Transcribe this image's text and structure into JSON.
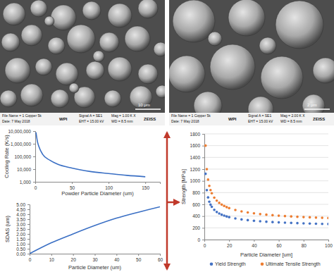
{
  "images": [
    {
      "texts": [
        "File Name = 1 Copper 5k",
        "Date: 7 May 2018",
        "WPI",
        "Signal A = SE1",
        "EHT = 15.00 kV",
        "Mag = 1.00 K X",
        "WD = 8.5 mm",
        "ZEISS",
        "10 μm"
      ]
    },
    {
      "texts": [
        "File Name = 1 Copper 5k",
        "Date: 7 May 2018",
        "WPI",
        "Signal A = SE1",
        "EHT = 15.00 kV",
        "Mag = 2.00 K X",
        "WD = 8.5 mm",
        "ZEISS",
        "2 μm"
      ]
    }
  ],
  "chart_data": [
    {
      "type": "line",
      "x_label": "Powder Particle Diameter (um)",
      "y_label": "Cooling Rate (K/s)",
      "x": [
        1,
        3,
        5,
        10,
        20,
        30,
        50,
        75,
        100,
        125,
        150
      ],
      "values": [
        8000000,
        1500000,
        600000,
        150000,
        50000,
        25000,
        12000,
        6500,
        4500,
        3200,
        2500
      ],
      "color": "#3a6fc4",
      "log": "y",
      "xlim": [
        0,
        170
      ],
      "xticks": [
        0,
        50,
        100,
        150
      ],
      "ylim": [
        1000,
        10000000
      ],
      "yticks": [
        {
          "value": 1000,
          "label": "1,000"
        },
        {
          "value": 10000,
          "label": "10,000"
        },
        {
          "value": 100000,
          "label": "100,000"
        },
        {
          "value": 1000000,
          "label": "1,000,000"
        },
        {
          "value": 10000000,
          "label": "10,000,000"
        }
      ]
    },
    {
      "type": "line",
      "x_label": "Particle Diameter (um)",
      "y_label": "SDAS (um)",
      "x": [
        0,
        10,
        20,
        30,
        40,
        50,
        60
      ],
      "values": [
        0,
        1.1,
        2.0,
        2.85,
        3.6,
        4.2,
        4.75
      ],
      "color": "#3a6fc4",
      "xlim": [
        0,
        60
      ],
      "xticks": [
        0,
        10,
        20,
        30,
        40,
        50,
        60
      ],
      "ylim": [
        0,
        5
      ],
      "yticks": [
        {
          "value": 0,
          "label": "0.00"
        },
        {
          "value": 0.5,
          "label": "0.50"
        },
        {
          "value": 1,
          "label": "1.00"
        },
        {
          "value": 1.5,
          "label": "1.50"
        },
        {
          "value": 2,
          "label": "2.00"
        },
        {
          "value": 2.5,
          "label": "2.50"
        },
        {
          "value": 3,
          "label": "3.00"
        },
        {
          "value": 3.5,
          "label": "3.50"
        },
        {
          "value": 4,
          "label": "4.00"
        },
        {
          "value": 4.5,
          "label": "4.50"
        },
        {
          "value": 5,
          "label": "5.00"
        }
      ]
    },
    {
      "type": "scatter",
      "x_label": "Particle Diameter [um]",
      "y_label": "Strength [MPa]",
      "x": [
        1,
        2,
        3,
        4,
        5,
        6,
        8,
        10,
        12,
        14,
        16,
        18,
        20,
        25,
        30,
        35,
        40,
        45,
        50,
        55,
        60,
        65,
        70,
        75,
        80,
        85,
        90,
        95,
        100
      ],
      "series": [
        {
          "name": "Yield Strength",
          "color": "#4472c4",
          "values": [
            1120,
            842,
            718,
            645,
            595,
            558,
            506,
            470,
            444,
            424,
            408,
            394,
            382,
            360,
            343,
            331,
            320,
            312,
            304,
            298,
            293,
            288,
            284,
            280,
            276,
            273,
            270,
            267,
            265
          ]
        },
        {
          "name": "Ultimate Tensile Strength",
          "color": "#ed7d31",
          "values": [
            1600,
            1199,
            1021,
            915,
            843,
            789,
            714,
            663,
            625,
            596,
            573,
            553,
            536,
            504,
            480,
            462,
            447,
            434,
            424,
            415,
            407,
            400,
            394,
            388,
            383,
            379,
            374,
            371,
            367
          ]
        }
      ],
      "marker": "circle",
      "grid": true,
      "legend": "bottom",
      "xlim": [
        0,
        100
      ],
      "xticks": [
        0,
        20,
        40,
        60,
        80,
        100
      ],
      "ylim": [
        0,
        1800
      ],
      "yticks": [
        0,
        200,
        400,
        600,
        800,
        1000,
        1200,
        1400,
        1600,
        1800
      ]
    }
  ]
}
